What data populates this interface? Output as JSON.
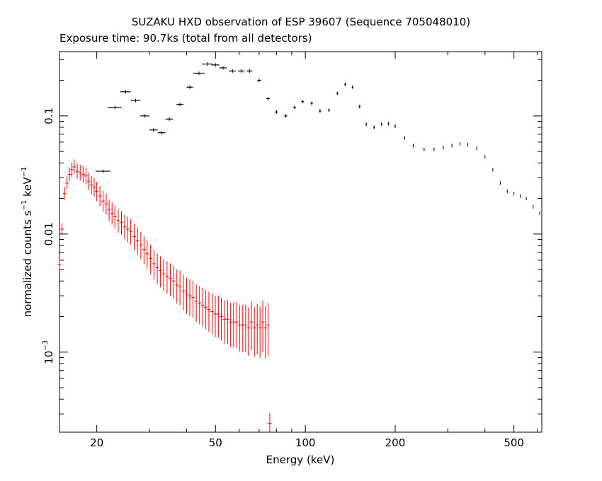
{
  "chart_data": {
    "type": "scatter",
    "title": "SUZAKU HXD observation of ESP 39607 (Sequence 705048010)",
    "subtitle": "Exposure time: 90.7ks (total from all detectors)",
    "xlabel": "Energy (keV)",
    "ylabel": "normalized counts s",
    "ylabel_unit": "keV",
    "ylabel_exp": "−1",
    "x_scale": "log",
    "y_scale": "log",
    "xlim": [
      15,
      620
    ],
    "ylim": [
      0.00021,
      0.35
    ],
    "x_ticks": [
      {
        "value": 20,
        "label": "20"
      },
      {
        "value": 50,
        "label": "50"
      },
      {
        "value": 100,
        "label": "100"
      },
      {
        "value": 200,
        "label": "200"
      },
      {
        "value": 500,
        "label": "500"
      }
    ],
    "y_ticks": [
      {
        "value": 0.1,
        "label": "0.1"
      },
      {
        "value": 0.01,
        "label": "0.01"
      },
      {
        "value": 0.001,
        "label": "10",
        "exp": "−3"
      }
    ],
    "colors": {
      "gso": "#000000",
      "pin": "#ff0000"
    },
    "series": [
      {
        "color": "#000000",
        "x": [
          21,
          23,
          25,
          27,
          29,
          31,
          33,
          35,
          38,
          41,
          44,
          47,
          50,
          53,
          57,
          61,
          65,
          70,
          75,
          80,
          86,
          92,
          98,
          105,
          112,
          120,
          128,
          136,
          144,
          152,
          160,
          170,
          180,
          190,
          200,
          215,
          230,
          250,
          270,
          290,
          310,
          330,
          350,
          375,
          400,
          425,
          450,
          475,
          500,
          525,
          550,
          580,
          610
        ],
        "y": [
          0.034,
          0.118,
          0.16,
          0.135,
          0.1,
          0.076,
          0.072,
          0.094,
          0.125,
          0.175,
          0.23,
          0.275,
          0.27,
          0.255,
          0.24,
          0.24,
          0.24,
          0.2,
          0.14,
          0.108,
          0.1,
          0.118,
          0.132,
          0.128,
          0.11,
          0.112,
          0.155,
          0.185,
          0.175,
          0.12,
          0.085,
          0.08,
          0.085,
          0.086,
          0.082,
          0.065,
          0.056,
          0.052,
          0.052,
          0.054,
          0.056,
          0.058,
          0.057,
          0.053,
          0.045,
          0.035,
          0.027,
          0.023,
          0.022,
          0.021,
          0.02,
          0.017,
          0.015
        ],
        "xerr": [
          1.2,
          1.2,
          1.0,
          1.0,
          1.0,
          1.0,
          1.0,
          1.0,
          1.0,
          1.0,
          2.0,
          2.0,
          1.5,
          1.5,
          1.5,
          1.5,
          1.5,
          1.0,
          1.0,
          1.0,
          1.0,
          1.0,
          1.0,
          1.0,
          1.0,
          1.0,
          1.0,
          1.0,
          1.0,
          1.0,
          1.0,
          1.0,
          1.0,
          1.0,
          1.0,
          1.0,
          1.0,
          1.0,
          1.0,
          1.0,
          1.0,
          1.0,
          1.0,
          1.0,
          1.0,
          1.0,
          1.0,
          1.0,
          1.0,
          1.0,
          1.0,
          1.0,
          1.0
        ]
      },
      {
        "color": "#ff0000",
        "x": [
          15.0,
          15.3,
          15.6,
          15.9,
          16.2,
          16.5,
          16.8,
          17.2,
          17.6,
          18.0,
          18.4,
          18.8,
          19.2,
          19.6,
          20.0,
          20.5,
          21.0,
          21.5,
          22.0,
          22.5,
          23.0,
          23.6,
          24.2,
          24.8,
          25.4,
          26.0,
          26.7,
          27.4,
          28.1,
          28.8,
          29.5,
          30.3,
          31.1,
          31.9,
          32.7,
          33.5,
          34.4,
          35.3,
          36.2,
          37.1,
          38.0,
          39.0,
          40.0,
          41.0,
          42.0,
          43.1,
          44.2,
          45.3,
          46.4,
          47.5,
          48.7,
          49.9,
          51.1,
          52.3,
          53.6,
          54.9,
          56.2,
          57.5,
          58.9,
          60.3,
          61.7,
          63.1,
          64.5,
          66.0,
          67.5,
          69.0,
          70.5,
          72.0,
          73.5,
          75.0
        ],
        "y": [
          0.0055,
          0.011,
          0.022,
          0.027,
          0.032,
          0.035,
          0.037,
          0.034,
          0.033,
          0.032,
          0.031,
          0.028,
          0.026,
          0.025,
          0.023,
          0.021,
          0.019,
          0.018,
          0.016,
          0.015,
          0.014,
          0.013,
          0.0125,
          0.0115,
          0.011,
          0.0105,
          0.0095,
          0.0088,
          0.0081,
          0.0074,
          0.0068,
          0.0062,
          0.0056,
          0.0052,
          0.0049,
          0.0046,
          0.0044,
          0.0042,
          0.004,
          0.0037,
          0.0036,
          0.0033,
          0.0031,
          0.003,
          0.0029,
          0.0027,
          0.0026,
          0.0025,
          0.0024,
          0.0023,
          0.0022,
          0.0021,
          0.0021,
          0.002,
          0.0019,
          0.0019,
          0.0018,
          0.0018,
          0.0018,
          0.0017,
          0.0017,
          0.0017,
          0.0016,
          0.0018,
          0.0016,
          0.0017,
          0.0016,
          0.0018,
          0.0016,
          0.0017
        ],
        "outlier": {
          "x": 76,
          "y": 0.00025
        }
      }
    ]
  }
}
